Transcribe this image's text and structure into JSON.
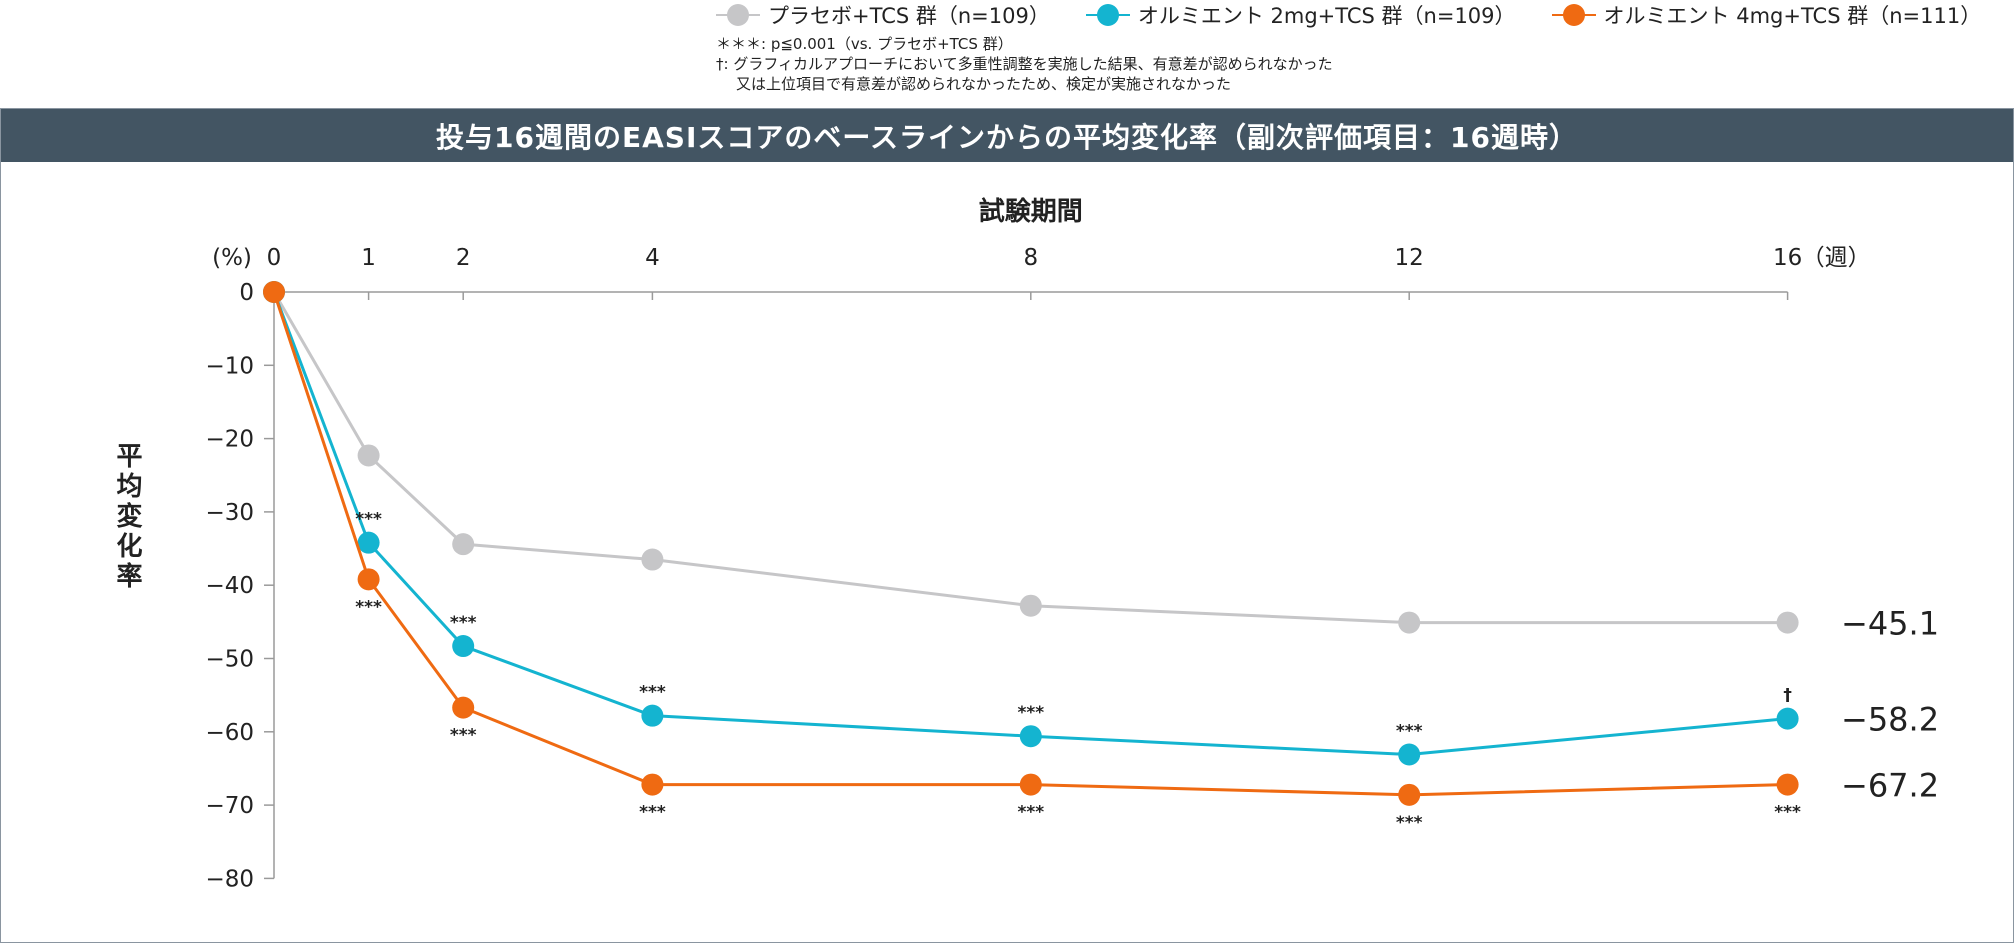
{
  "legend": [
    {
      "label": "プラセボ+TCS 群（n=109）",
      "color": "#c6c6c8"
    },
    {
      "label": "オルミエント 2mg+TCS 群（n=109）",
      "color": "#14b4d0"
    },
    {
      "label": "オルミエント 4mg+TCS 群（n=111）",
      "color": "#ef6a12"
    }
  ],
  "notes": {
    "line1": "＊＊＊: p≦0.001（vs. プラセボ+TCS 群）",
    "line2": "†: グラフィカルアプローチにおいて多重性調整を実施した結果、有意差が認められなかった",
    "line3": "又は上位項目で有意差が認められなかったため、検定が実施されなかった"
  },
  "chart_data": {
    "type": "line",
    "title": "投与16週間のEASIスコアのベースラインからの平均変化率（副次評価項目：16週時）",
    "xlabel": "試験期間",
    "ylabel": "平均変化率",
    "x_unit": "（週）",
    "y_unit": "(%)",
    "x": [
      0,
      1,
      2,
      4,
      8,
      12,
      16
    ],
    "x_ticks": [
      "0",
      "1",
      "2",
      "4",
      "8",
      "12",
      "16"
    ],
    "ylim": [
      -80,
      0
    ],
    "y_ticks": [
      0,
      -10,
      -20,
      -30,
      -40,
      -50,
      -60,
      -70,
      -80
    ],
    "y_tick_labels": [
      "0",
      "−10",
      "−20",
      "−30",
      "−40",
      "−50",
      "−60",
      "−70",
      "−80"
    ],
    "series": [
      {
        "name": "プラセボ+TCS 群（n=109）",
        "color": "#c6c6c8",
        "values": [
          0,
          -22.3,
          -34.4,
          -36.5,
          -42.8,
          -45.1,
          -45.1
        ],
        "annotations": [
          "",
          "",
          "",
          "",
          "",
          "",
          ""
        ],
        "annotation_pos": "above",
        "end_label": "−45.1"
      },
      {
        "name": "オルミエント 2mg+TCS 群（n=109）",
        "color": "#14b4d0",
        "values": [
          0,
          -34.2,
          -48.3,
          -57.8,
          -60.6,
          -63.1,
          -58.2
        ],
        "annotations": [
          "",
          "***",
          "***",
          "***",
          "***",
          "***",
          "†"
        ],
        "annotation_pos": "above",
        "end_label": "−58.2"
      },
      {
        "name": "オルミエント 4mg+TCS 群（n=111）",
        "color": "#ef6a12",
        "values": [
          0,
          -39.2,
          -56.7,
          -67.2,
          -67.2,
          -68.6,
          -67.2
        ],
        "annotations": [
          "",
          "***",
          "***",
          "***",
          "***",
          "***",
          "***"
        ],
        "annotation_pos": "below",
        "end_label": "−67.2"
      }
    ]
  }
}
